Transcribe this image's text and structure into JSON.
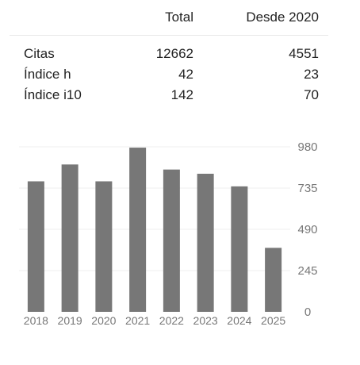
{
  "table": {
    "headers": {
      "total": "Total",
      "since": "Desde 2020"
    },
    "rows": [
      {
        "label": "Citas",
        "total": "12662",
        "since": "4551"
      },
      {
        "label": "Índice h",
        "total": "42",
        "since": "23"
      },
      {
        "label": "Índice i10",
        "total": "142",
        "since": "70"
      }
    ]
  },
  "chart_data": {
    "type": "bar",
    "categories": [
      "2018",
      "2019",
      "2020",
      "2021",
      "2022",
      "2023",
      "2024",
      "2025"
    ],
    "values": [
      775,
      875,
      775,
      975,
      845,
      820,
      745,
      380
    ],
    "title": "",
    "xlabel": "",
    "ylabel": "",
    "yticks": [
      "0",
      "245",
      "490",
      "735",
      "980"
    ],
    "ylim": [
      0,
      980
    ],
    "grid": true,
    "bar_color": "#777777"
  }
}
